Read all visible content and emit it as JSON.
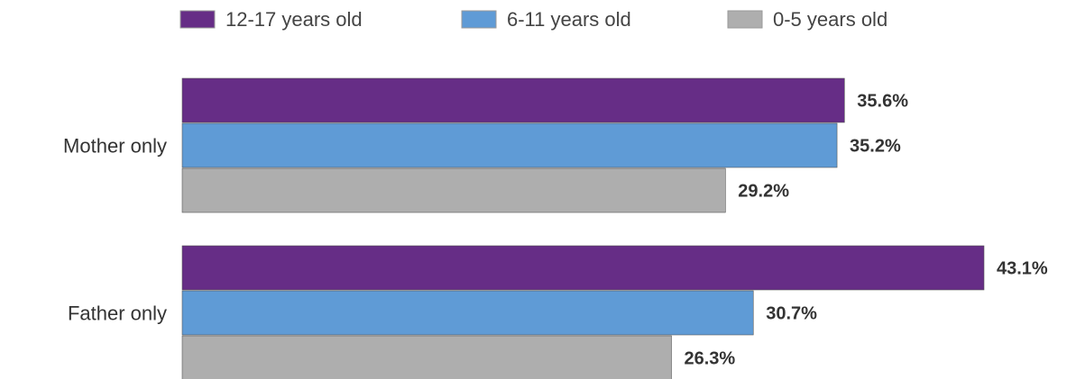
{
  "chart_data": {
    "type": "bar",
    "orientation": "horizontal",
    "categories": [
      "Mother only",
      "Father only"
    ],
    "series": [
      {
        "name": "12-17 years old",
        "color": "#662d86",
        "values": [
          35.6,
          43.1
        ],
        "labels": [
          "35.6%",
          "43.1%"
        ]
      },
      {
        "name": "6-11 years old",
        "color": "#5f9bd6",
        "values": [
          35.2,
          30.7
        ],
        "labels": [
          "35.2%",
          "30.7%"
        ]
      },
      {
        "name": "0-5 years old",
        "color": "#aeaeae",
        "values": [
          29.2,
          26.3
        ],
        "labels": [
          "29.2%",
          "26.3%"
        ]
      }
    ],
    "value_unit": "%",
    "xlim": [
      0,
      43.1
    ],
    "legend_position": "top",
    "grid": false
  }
}
